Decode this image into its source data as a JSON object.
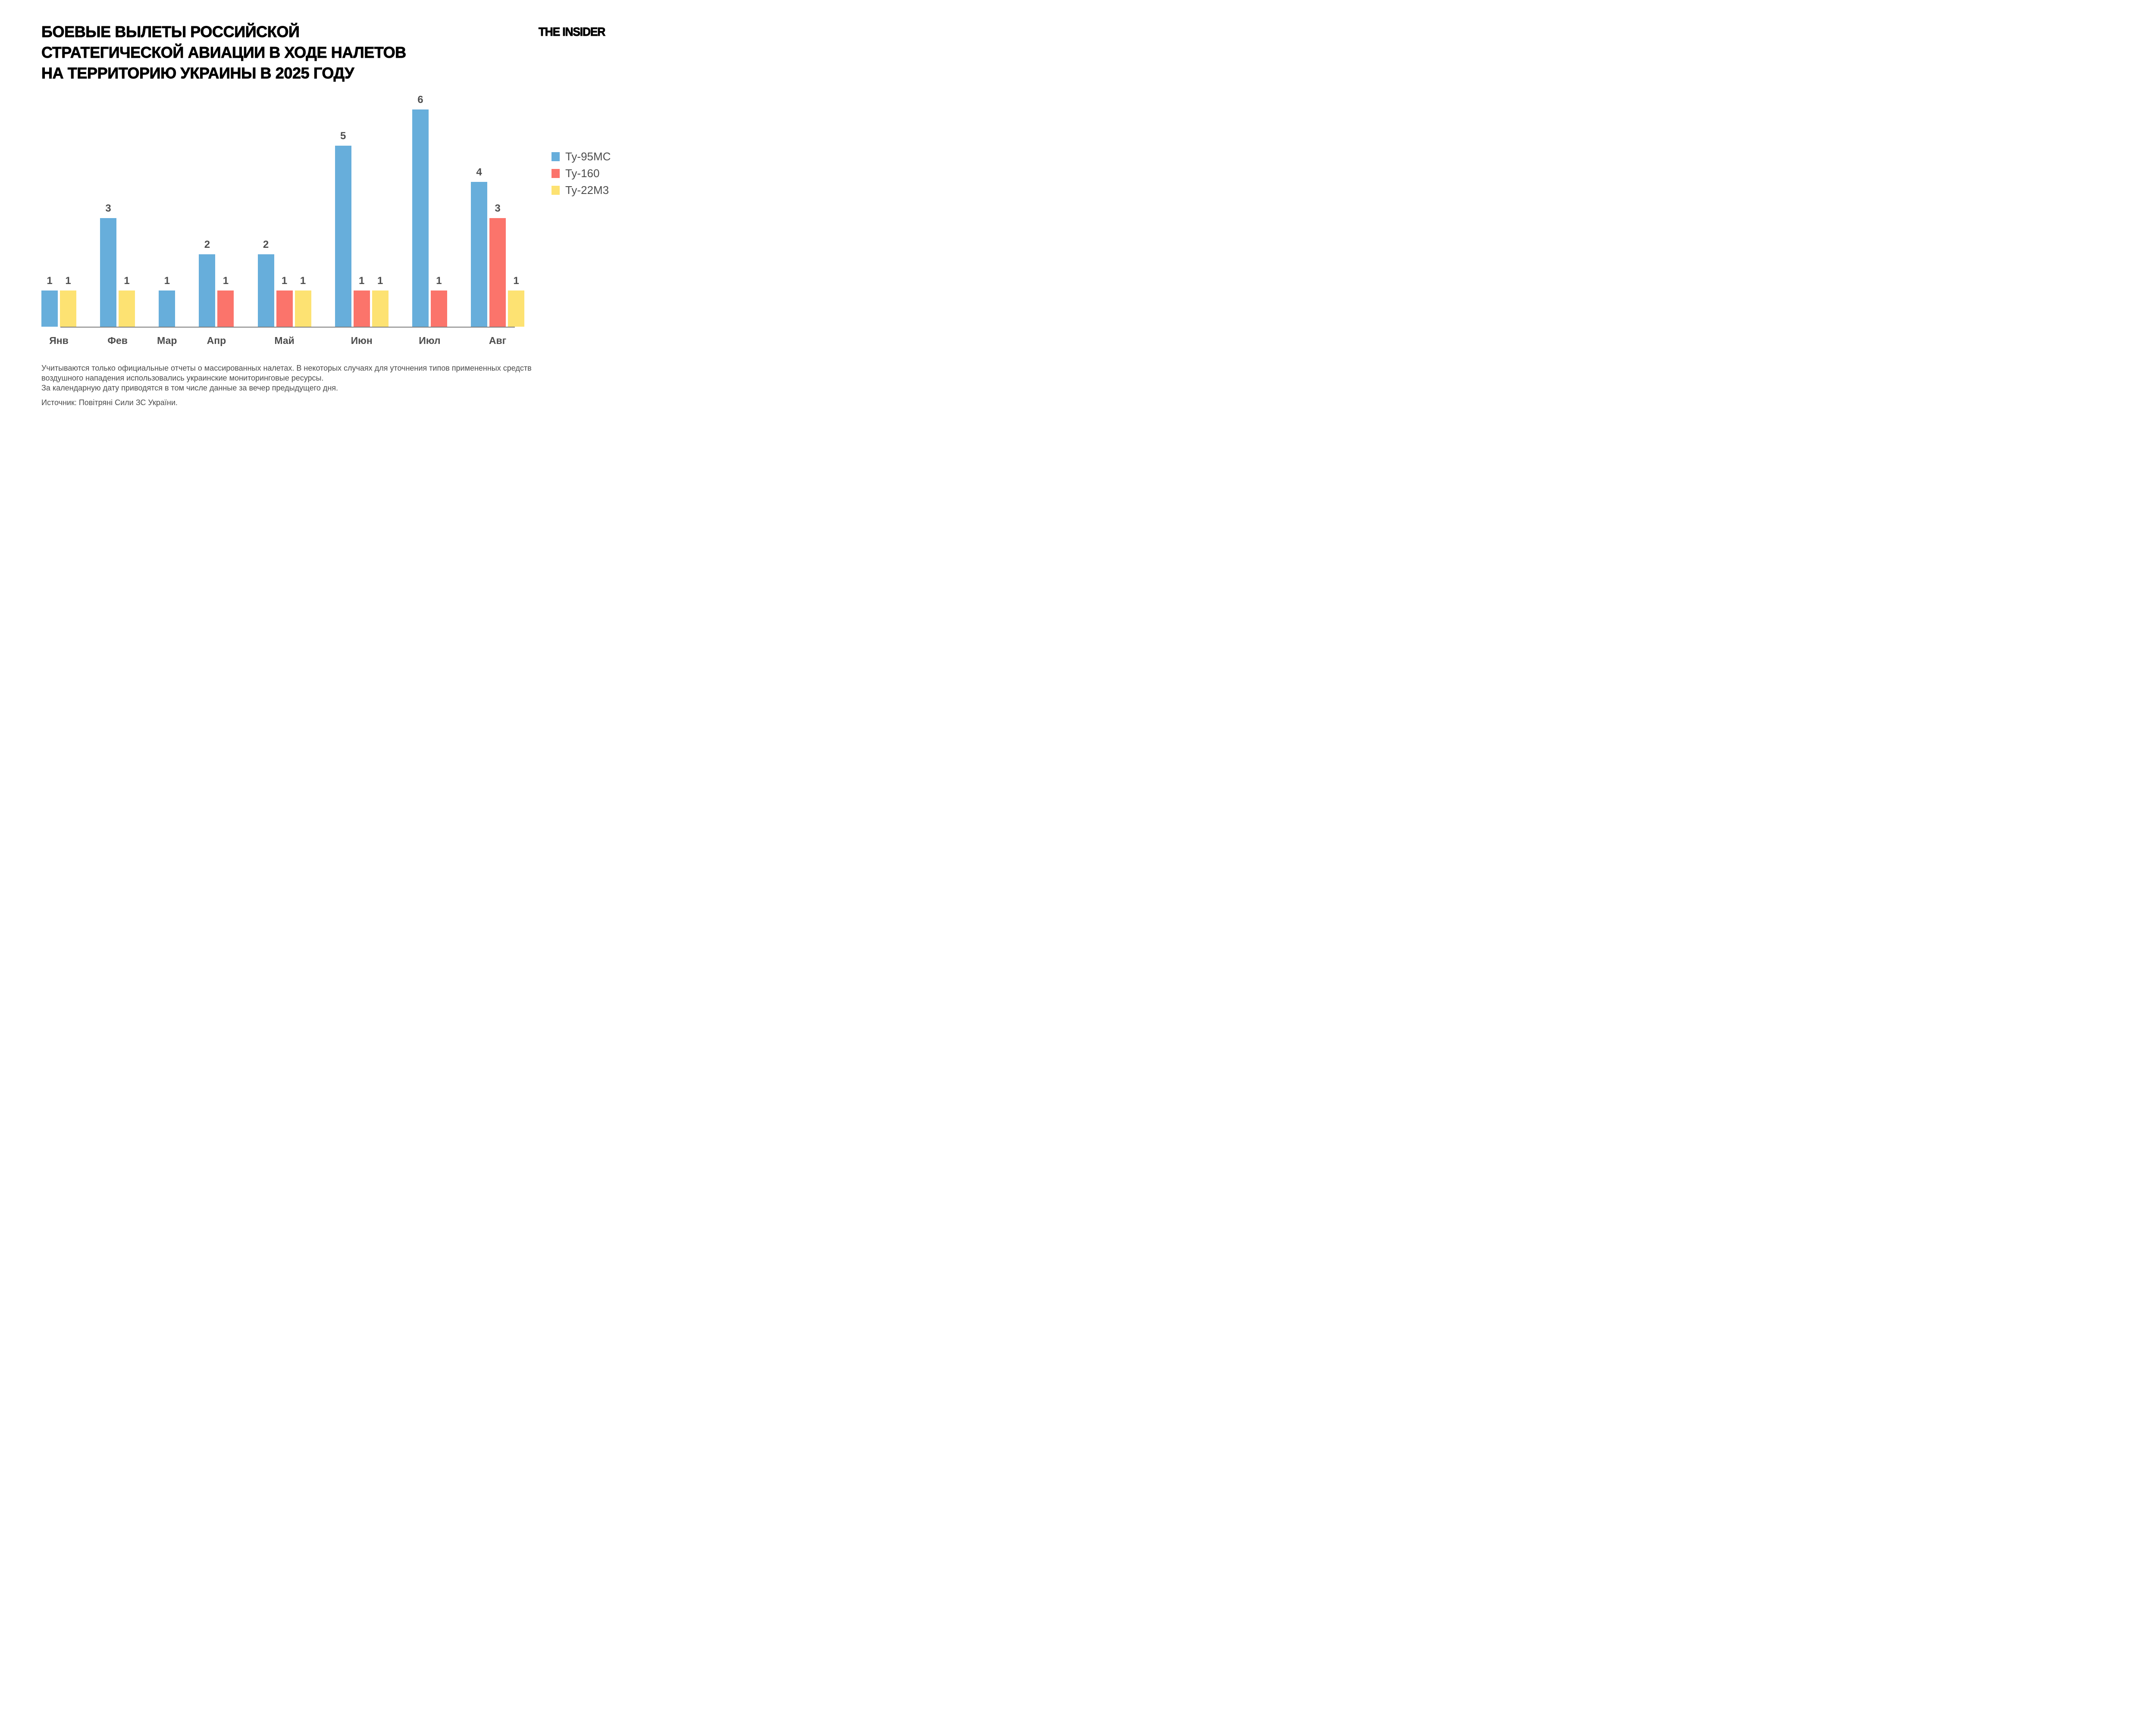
{
  "title": {
    "lines": [
      "БОЕВЫЕ ВЫЛЕТЫ РОССИЙСКОЙ",
      "СТРАТЕГИЧЕСКОЙ АВИАЦИИ В ХОДЕ НАЛЕТОВ",
      "НА ТЕРРИТОРИЮ УКРАИНЫ В 2025 ГОДУ"
    ]
  },
  "brand": {
    "logo_text": "THE INSIDER"
  },
  "colors": {
    "tu95ms": "#67AEDB",
    "tu160": "#FB746B",
    "tu22m3": "#FDE272",
    "label_gray": "#4d4d4d",
    "axis_gray": "#7d7d7d",
    "title_black": "#000000"
  },
  "chart_data": {
    "type": "bar",
    "title": "Боевые вылеты российской стратегической авиации в ходе налетов на территорию Украины в 2025 году",
    "categories": [
      "Янв",
      "Фев",
      "Мар",
      "Апр",
      "Май",
      "Июн",
      "Июл",
      "Авг"
    ],
    "series": [
      {
        "name": "Ту-95МС",
        "color": "#67AEDB",
        "values": [
          1,
          3,
          1,
          2,
          2,
          5,
          6,
          4
        ]
      },
      {
        "name": "Ту-160",
        "color": "#FB746B",
        "values": [
          null,
          null,
          null,
          1,
          1,
          1,
          1,
          3
        ]
      },
      {
        "name": "Ту-22М3",
        "color": "#FDE272",
        "values": [
          1,
          1,
          null,
          null,
          1,
          1,
          null,
          1
        ]
      }
    ],
    "xlabel": "",
    "ylabel": "",
    "ylim": [
      0,
      6
    ],
    "grid": false,
    "value_labels": true,
    "legend_position": "right"
  },
  "legend": [
    {
      "label": "Ту-95МС",
      "color": "#67AEDB"
    },
    {
      "label": "Ту-160",
      "color": "#FB746B"
    },
    {
      "label": "Ту-22М3",
      "color": "#FDE272"
    }
  ],
  "footnote": {
    "lines": [
      "Учитываются только официальные отчеты о массированных налетах. В некоторых случаях для уточнения типов примененных средств",
      "воздушного нападения использовались украинские мониторинговые ресурсы.",
      "За календарную дату приводятся в том числе данные за вечер предыдущего дня."
    ],
    "source": "Источник: Повітряні Сили ЗС України."
  }
}
